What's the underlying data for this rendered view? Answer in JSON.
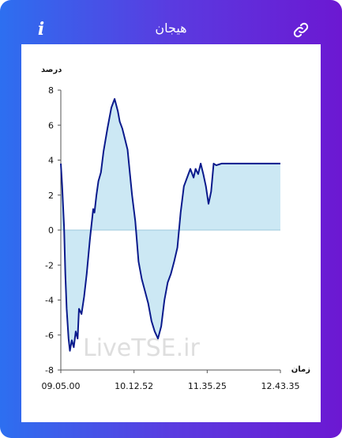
{
  "header": {
    "title": "هیجان",
    "info_icon": "info-icon",
    "link_icon": "link-icon"
  },
  "watermark": "LiveTSE.ir",
  "colors": {
    "gradient_start": "#2d6ff0",
    "gradient_end": "#6c18d2",
    "line": "#0a1a8c",
    "fill": "#cce8f4"
  },
  "chart_data": {
    "type": "area",
    "ylabel": "درصد",
    "xlabel": "زمان",
    "ylim": [
      -8,
      8
    ],
    "yticks": [
      8,
      6,
      4,
      2,
      0,
      -2,
      -4,
      -6,
      -8
    ],
    "xticks": [
      "09.05.00",
      "10.12.52",
      "11.35.25",
      "12.43.35"
    ],
    "grid": false,
    "series": [
      {
        "x": [
          0,
          2,
          5,
          7,
          9,
          12,
          14,
          17,
          20,
          23,
          26,
          28,
          32,
          36,
          40,
          45,
          50,
          52,
          55,
          58,
          62,
          66,
          72,
          78,
          83,
          88,
          91,
          95,
          99,
          103,
          106,
          110,
          115,
          120,
          125,
          130,
          135,
          140,
          145,
          150,
          155,
          160,
          165,
          170,
          175,
          180,
          185,
          190,
          195,
          200,
          205,
          208,
          212,
          216,
          220,
          224,
          228,
          232,
          236,
          240,
          244,
          248,
          252,
          256,
          260,
          264,
          267,
          272,
          278,
          284,
          290,
          295,
          300,
          305,
          308,
          312,
          315,
          318,
          320,
          323,
          326,
          329,
          332,
          335,
          339
        ],
        "values": [
          3.8,
          2.6,
          0.2,
          -2.5,
          -4.5,
          -6.2,
          -6.9,
          -6.3,
          -6.7,
          -5.8,
          -6.2,
          -4.5,
          -4.8,
          -3.8,
          -2.5,
          -0.5,
          1.2,
          1.0,
          2.0,
          2.8,
          3.3,
          4.5,
          5.8,
          7.0,
          7.5,
          6.8,
          6.2,
          5.8,
          5.2,
          4.6,
          3.5,
          2.0,
          0.5,
          -1.8,
          -2.8,
          -3.5,
          -4.2,
          -5.2,
          -5.8,
          -6.2,
          -5.5,
          -4.0,
          -3.0,
          -2.5,
          -1.8,
          -1.0,
          1.0,
          2.5,
          3.0,
          3.5,
          3.0,
          3.5,
          3.2,
          3.8,
          3.2,
          2.5,
          1.5,
          2.2,
          3.8,
          3.7,
          3.75,
          3.8,
          3.8,
          3.8,
          3.8,
          3.8,
          3.8,
          3.8,
          3.8,
          3.8,
          3.8,
          3.8,
          3.8,
          3.8,
          3.8,
          3.8,
          3.8,
          3.8,
          3.8,
          3.8,
          3.8,
          3.8,
          3.8,
          3.8,
          3.8
        ]
      }
    ]
  }
}
